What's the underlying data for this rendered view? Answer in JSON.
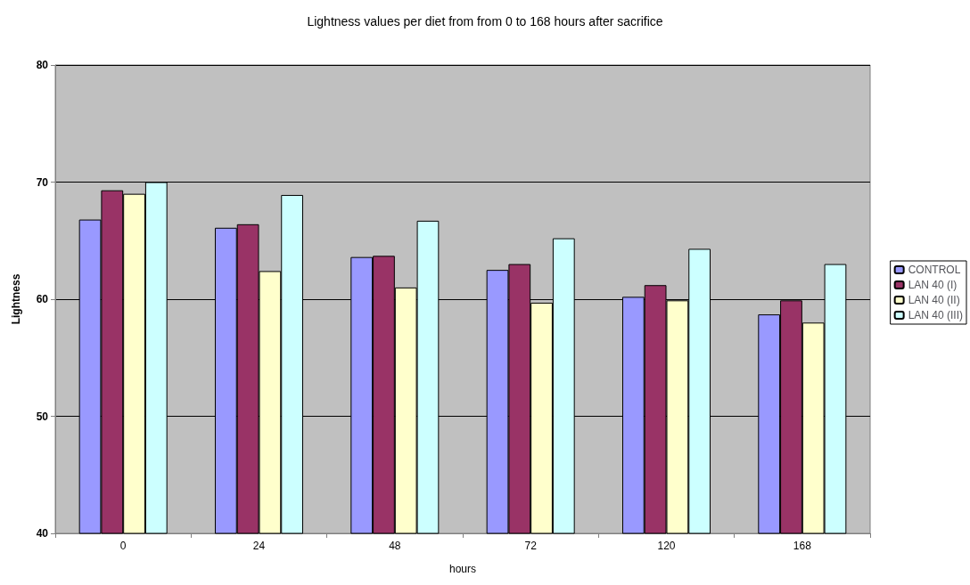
{
  "chart_data": {
    "type": "bar",
    "title": "Lightness values per diet from from 0 to 168 hours after sacrifice",
    "xlabel": "hours",
    "ylabel": "Lightness",
    "categories": [
      "0",
      "24",
      "48",
      "72",
      "120",
      "168"
    ],
    "series": [
      {
        "name": "CONTROL",
        "color": "#9999ff",
        "values": [
          66.8,
          66.1,
          63.6,
          62.5,
          60.2,
          58.7
        ]
      },
      {
        "name": "LAN 40 (I)",
        "color": "#993366",
        "values": [
          69.3,
          66.4,
          63.7,
          63.0,
          61.2,
          59.9
        ]
      },
      {
        "name": "LAN 40 (II)",
        "color": "#ffffcc",
        "values": [
          69.0,
          62.4,
          61.0,
          59.7,
          59.9,
          58.0
        ]
      },
      {
        "name": "LAN 40 (III)",
        "color": "#ccffff",
        "values": [
          70.0,
          68.9,
          66.7,
          65.2,
          64.3,
          63.0
        ]
      }
    ],
    "ylim": [
      40,
      80
    ],
    "yticks": [
      40,
      50,
      60,
      70,
      80
    ],
    "grid": "y",
    "legend": "right"
  }
}
